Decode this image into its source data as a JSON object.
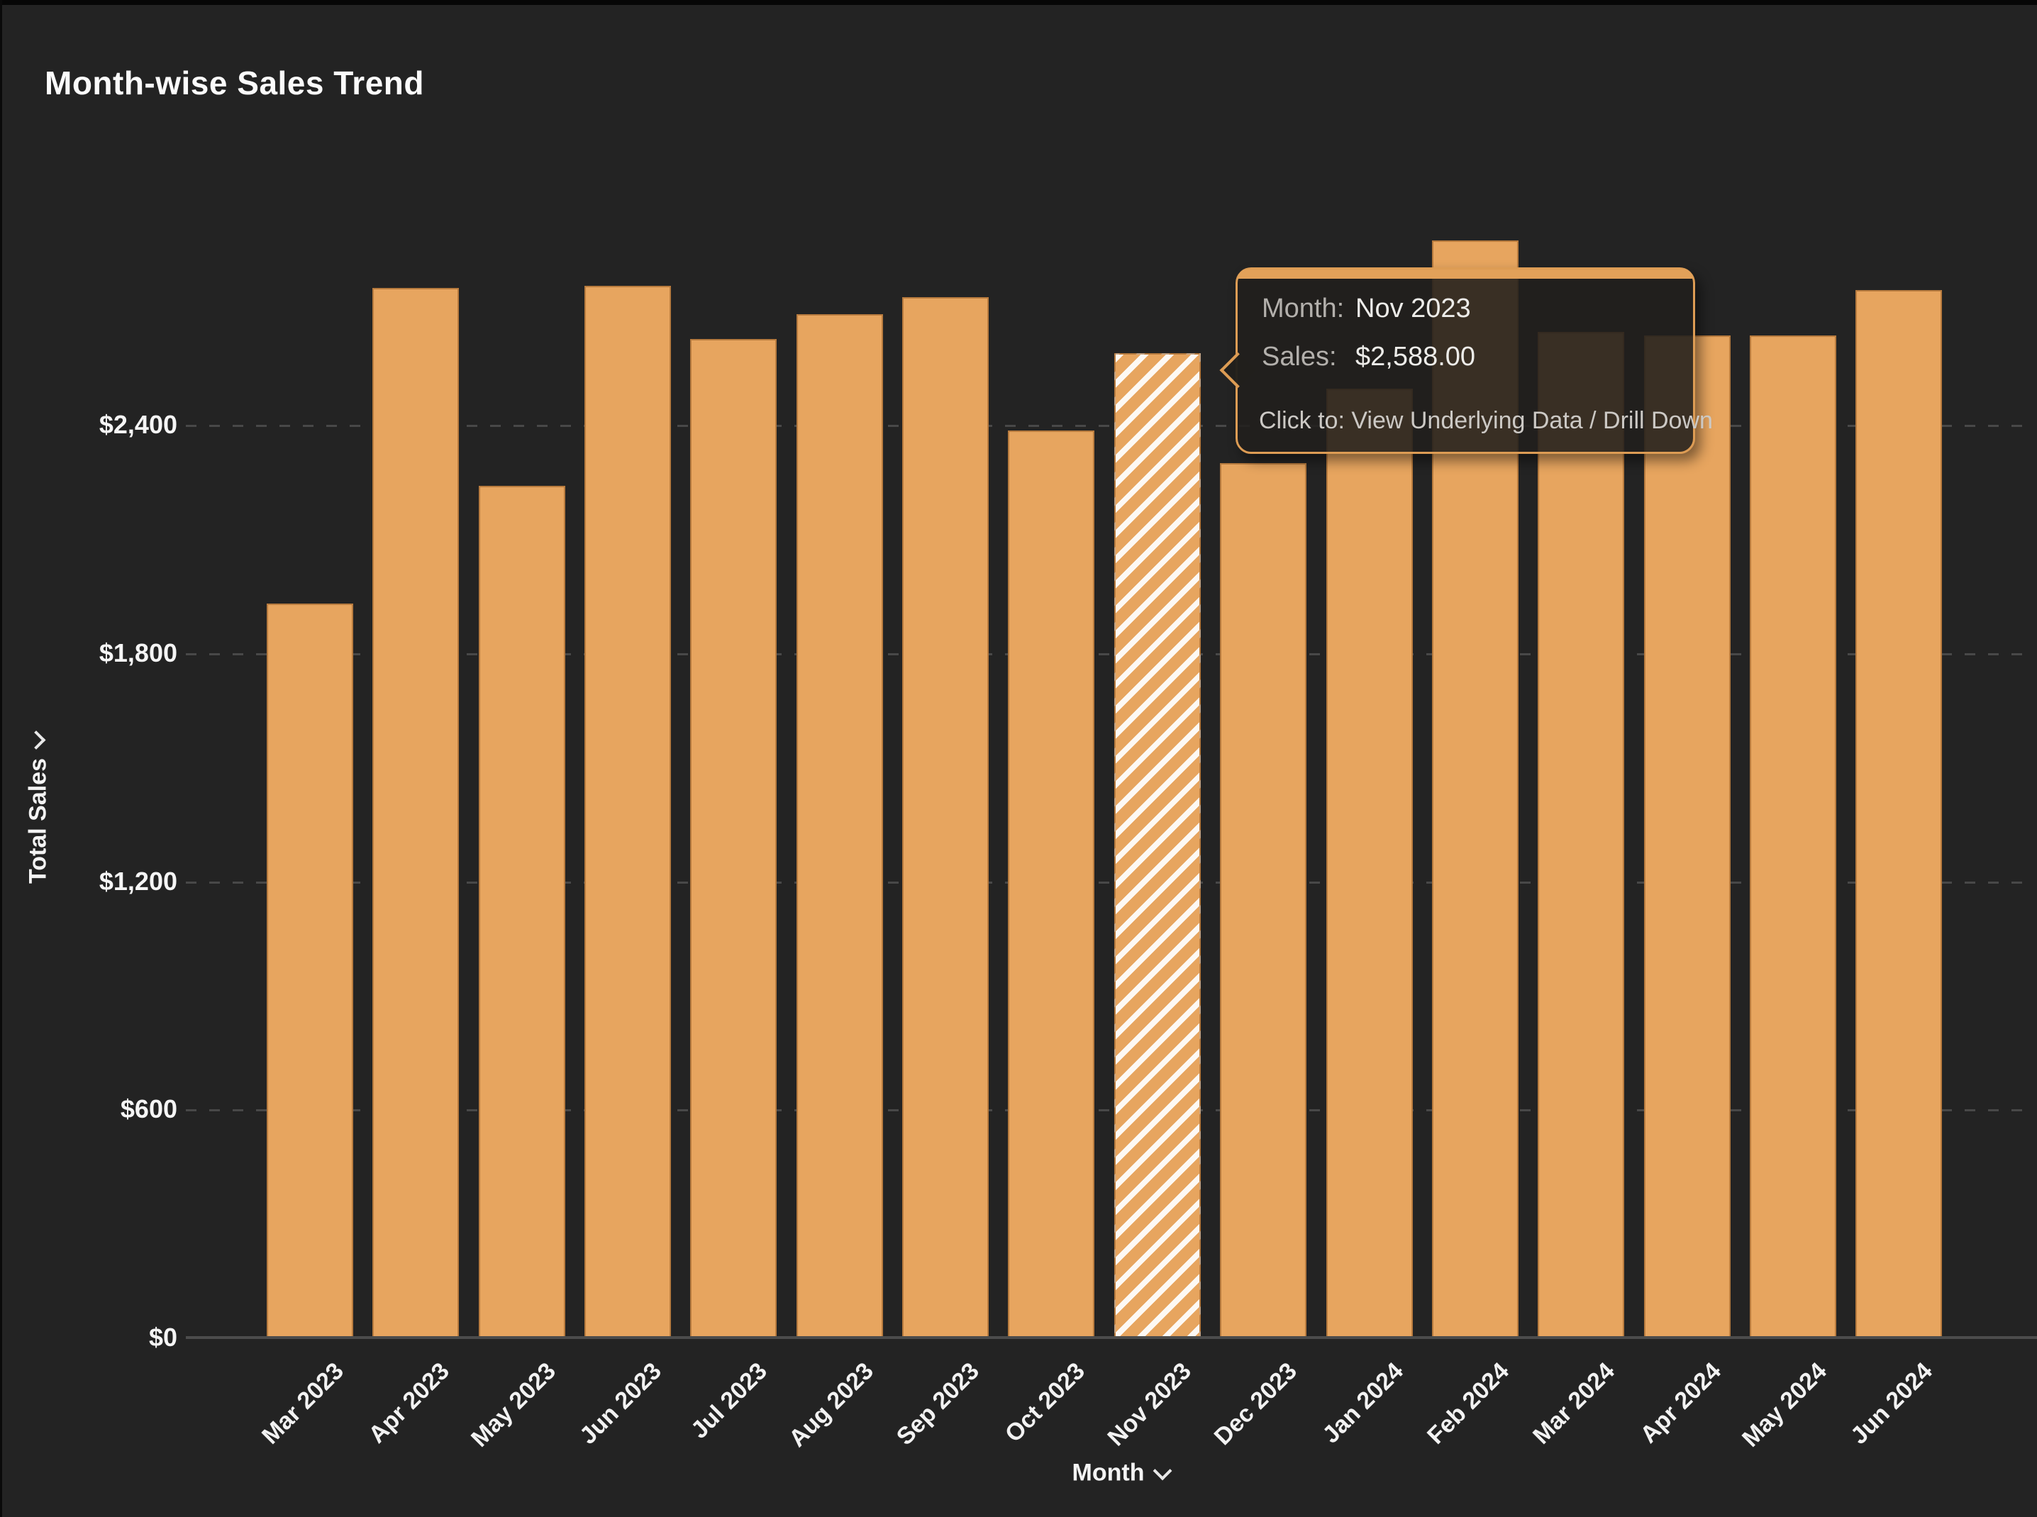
{
  "title": "Month-wise Sales Trend",
  "y_axis": {
    "title": "Total Sales",
    "ticks": [
      {
        "label": "$0",
        "value": 0
      },
      {
        "label": "$600",
        "value": 600
      },
      {
        "label": "$1,200",
        "value": 1200
      },
      {
        "label": "$1,800",
        "value": 1800
      },
      {
        "label": "$2,400",
        "value": 2400
      }
    ]
  },
  "x_axis": {
    "title": "Month"
  },
  "tooltip": {
    "month_label": "Month:",
    "month_value": "Nov 2023",
    "sales_label": "Sales:",
    "sales_value": "$2,588.00",
    "click_hint": "Click to: View Underlying Data / Drill Down"
  },
  "colors": {
    "background": "#232323",
    "bar": "#e7a55f",
    "tooltip_border": "#dd9c54",
    "grid": "#484848",
    "axis_line": "#4c4c4c",
    "text": "#f5f5f5"
  },
  "chart_data": {
    "type": "bar",
    "title": "Month-wise Sales Trend",
    "xlabel": "Month",
    "ylabel": "Total Sales",
    "categories": [
      "Mar 2023",
      "Apr 2023",
      "May 2023",
      "Jun 2023",
      "Jul 2023",
      "Aug 2023",
      "Sep 2023",
      "Oct 2023",
      "Nov 2023",
      "Dec 2023",
      "Jan 2024",
      "Feb 2024",
      "Mar 2024",
      "Apr 2024",
      "May 2024",
      "Jun 2024"
    ],
    "values": [
      1930,
      2760,
      2240,
      2765,
      2625,
      2690,
      2735,
      2385,
      2588,
      2300,
      2495,
      2885,
      2645,
      2635,
      2635,
      2755
    ],
    "ylim": [
      0,
      3000
    ],
    "ytick_step": 600,
    "grid": "horizontal dashed",
    "legend": "none",
    "bar_color": "#e7a55f",
    "highlighted_category": "Nov 2023",
    "highlight_style": "white diagonal hatch (hover)",
    "tooltip_on": "Nov 2023"
  }
}
